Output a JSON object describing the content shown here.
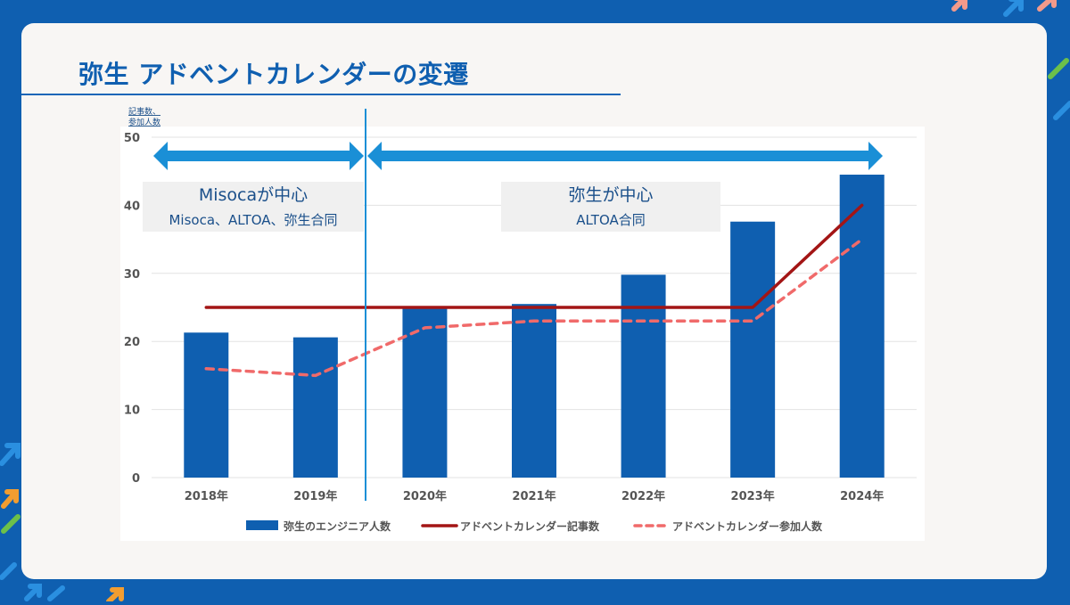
{
  "slide": {
    "title": "弥生 アドベントカレンダーの変遷"
  },
  "chart_data": {
    "type": "bar",
    "ylabel_lines": [
      "記事数、",
      "参加人数"
    ],
    "ylim": [
      0,
      50
    ],
    "yticks": [
      0,
      10,
      20,
      30,
      40,
      50
    ],
    "categories": [
      "2018年",
      "2019年",
      "2020年",
      "2021年",
      "2022年",
      "2023年",
      "2024年"
    ],
    "series": [
      {
        "name": "弥生のエンジニア人数",
        "kind": "bar",
        "color": "#0f5fb0",
        "values": [
          21.3,
          20.6,
          25.0,
          25.5,
          29.8,
          37.6,
          44.5
        ]
      },
      {
        "name": "アドベントカレンダー記事数",
        "kind": "line",
        "color": "#a31515",
        "values": [
          25,
          25,
          25,
          25,
          25,
          25,
          40
        ]
      },
      {
        "name": "アドベントカレンダー参加人数",
        "kind": "dashed-line",
        "color": "#f06a6a",
        "values": [
          16,
          15,
          22,
          23,
          23,
          23,
          35
        ]
      }
    ],
    "grid": true,
    "legend": "bottom",
    "periods": [
      {
        "main": "Misocaが中心",
        "sub": "Misoca、ALTOA、弥生合同",
        "from": "2018年",
        "to": "2019年"
      },
      {
        "main": "弥生が中心",
        "sub": "ALTOA合同",
        "from": "2020年",
        "to": "2024年"
      }
    ],
    "colors": {
      "arrow": "#1a8fd6",
      "divider": "#1a8fd6",
      "grid": "#e3e3e3",
      "axis_text": "#555555"
    }
  }
}
